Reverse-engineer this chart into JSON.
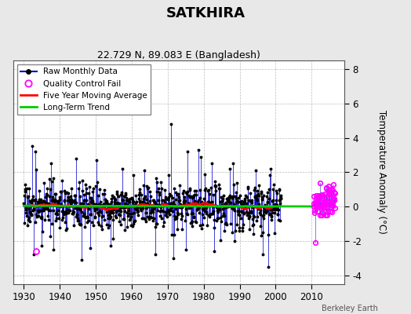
{
  "title": "SATKHIRA",
  "subtitle": "22.729 N, 89.083 E (Bangladesh)",
  "ylabel": "Temperature Anomaly (°C)",
  "xlabel_ticks": [
    1930,
    1940,
    1950,
    1960,
    1970,
    1980,
    1990,
    2000,
    2010
  ],
  "yticks": [
    -4,
    -2,
    0,
    2,
    4,
    6,
    8
  ],
  "ylim": [
    -4.5,
    8.5
  ],
  "xlim": [
    1927,
    2019
  ],
  "background_color": "#e8e8e8",
  "plot_bg_color": "#ffffff",
  "raw_line_color": "#0000cc",
  "raw_marker_color": "#000000",
  "qc_fail_color": "#ff00ff",
  "moving_avg_color": "#ff0000",
  "trend_color": "#00cc00",
  "trend_lw": 2.0,
  "moving_avg_lw": 1.8,
  "raw_lw": 0.7,
  "seed": 17
}
